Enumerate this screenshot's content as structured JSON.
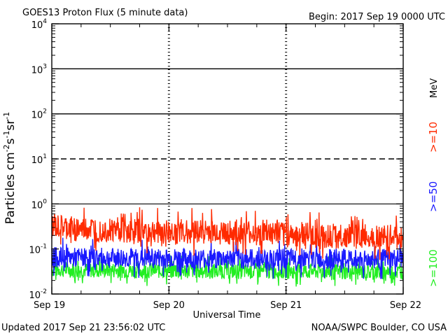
{
  "header": {
    "title": "GOES13 Proton Flux (5 minute data)",
    "begin": "Begin: 2017 Sep 19 0000 UTC"
  },
  "footer": {
    "updated": "Updated 2017 Sep 21 23:56:02 UTC",
    "credit": "NOAA/SWPC Boulder, CO USA"
  },
  "chart_data": {
    "type": "line",
    "title": "GOES13 Proton Flux (5 minute data)",
    "xlabel": "Universal Time",
    "ylabel": "Particles cm⁻²s⁻¹sr⁻¹",
    "y_scale": "log",
    "ylim": [
      0.01,
      10000
    ],
    "xlim": [
      "2017-09-19 00:00",
      "2017-09-22 00:00"
    ],
    "x_ticks": [
      "Sep 19",
      "Sep 20",
      "Sep 21",
      "Sep 22"
    ],
    "y_ticks": [
      {
        "base": "10",
        "exp": "-2"
      },
      {
        "base": "10",
        "exp": "-1"
      },
      {
        "base": "10",
        "exp": "0"
      },
      {
        "base": "10",
        "exp": "1"
      },
      {
        "base": "10",
        "exp": "2"
      },
      {
        "base": "10",
        "exp": "3"
      },
      {
        "base": "10",
        "exp": "4"
      }
    ],
    "thresholds": [
      {
        "value": 10,
        "style": "dashed"
      },
      {
        "value": 100,
        "style": "solid"
      },
      {
        "value": 1000,
        "style": "solid"
      }
    ],
    "unit_label": "MeV",
    "series": [
      {
        "name": ">=10",
        "color": "#ff2a00",
        "x": [
          "2017-09-19 00:00",
          "2017-09-19 06:00",
          "2017-09-19 12:00",
          "2017-09-19 18:00",
          "2017-09-20 00:00",
          "2017-09-20 06:00",
          "2017-09-20 12:00",
          "2017-09-20 18:00",
          "2017-09-21 00:00",
          "2017-09-21 06:00",
          "2017-09-21 12:00",
          "2017-09-21 18:00",
          "2017-09-22 00:00"
        ],
        "values": [
          0.3,
          0.28,
          0.27,
          0.25,
          0.24,
          0.25,
          0.23,
          0.22,
          0.21,
          0.2,
          0.19,
          0.19,
          0.18
        ]
      },
      {
        "name": ">=50",
        "color": "#1a1aff",
        "x": [
          "2017-09-19 00:00",
          "2017-09-19 06:00",
          "2017-09-19 12:00",
          "2017-09-19 18:00",
          "2017-09-20 00:00",
          "2017-09-20 06:00",
          "2017-09-20 12:00",
          "2017-09-20 18:00",
          "2017-09-21 00:00",
          "2017-09-21 06:00",
          "2017-09-21 12:00",
          "2017-09-21 18:00",
          "2017-09-22 00:00"
        ],
        "values": [
          0.065,
          0.064,
          0.063,
          0.062,
          0.062,
          0.061,
          0.061,
          0.06,
          0.06,
          0.06,
          0.059,
          0.059,
          0.058
        ]
      },
      {
        "name": ">=100",
        "color": "#22ee22",
        "x": [
          "2017-09-19 00:00",
          "2017-09-19 06:00",
          "2017-09-19 12:00",
          "2017-09-19 18:00",
          "2017-09-20 00:00",
          "2017-09-20 06:00",
          "2017-09-20 12:00",
          "2017-09-20 18:00",
          "2017-09-21 00:00",
          "2017-09-21 06:00",
          "2017-09-21 12:00",
          "2017-09-21 18:00",
          "2017-09-22 00:00"
        ],
        "values": [
          0.035,
          0.034,
          0.034,
          0.033,
          0.033,
          0.033,
          0.032,
          0.032,
          0.032,
          0.032,
          0.031,
          0.031,
          0.031
        ]
      }
    ],
    "grid": false
  }
}
